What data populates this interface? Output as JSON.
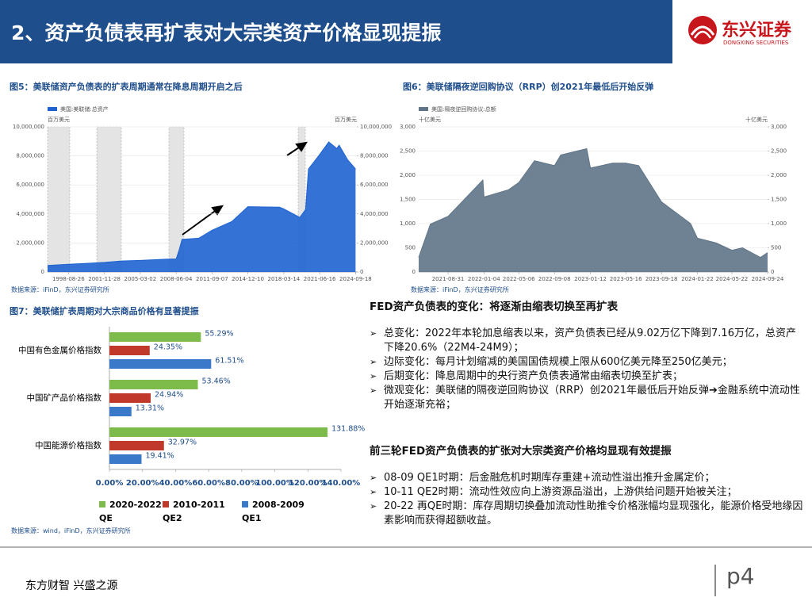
{
  "header": {
    "title": "2、资产负债表再扩表对大宗类资产价格显现提振",
    "logo_name": "东兴证券",
    "logo_english": "DONGXING SECURITIES"
  },
  "chart_data": [
    {
      "type": "area",
      "title": "图5：美联储资产负债表的扩表周期通常在降息周期开启之后",
      "source": "数据来源：iFinD，东兴证券研究所",
      "legend": "美国:美联储:总资产",
      "y_unit": "百万美元",
      "y2_unit": "百万美元",
      "color": "#1f63d0",
      "x": [
        "1996-10-02",
        "1998-08-26",
        "2000-06-28",
        "2001-11-28",
        "2003-06-25",
        "2005-03-02",
        "2007-06-27",
        "2008-06-04",
        "2008-09-10",
        "2008-12-17",
        "2010-06-30",
        "2011-09-07",
        "2013-06-26",
        "2014-12-10",
        "2016-06-29",
        "2017-10-25",
        "2018-03-14",
        "2019-08-28",
        "2020-03-04",
        "2020-06-10",
        "2021-06-16",
        "2022-04-13",
        "2023-01-04",
        "2023-03-22",
        "2024-01-03",
        "2024-09-18"
      ],
      "values": [
        450000,
        530000,
        600000,
        660000,
        760000,
        800000,
        880000,
        900000,
        1500000,
        2250000,
        2330000,
        2880000,
        3480000,
        4500000,
        4480000,
        4470000,
        4350000,
        3760000,
        4300000,
        7100000,
        8100000,
        8960000,
        8510000,
        8740000,
        7720000,
        7100000
      ],
      "xlim": [
        "1996-10-02",
        "2024-10-30"
      ],
      "xticks": [
        "1998-08-26",
        "2001-11-28",
        "2005-03-02",
        "2008-06-04",
        "2011-09-07",
        "2014-12-10",
        "2018-03-14",
        "2021-06-16",
        "2024-09-18"
      ],
      "ylim": [
        0,
        10000000
      ],
      "yticks": [
        0,
        {
          "value": 2000000,
          "label": "2,000,000"
        },
        {
          "value": 4000000,
          "label": "4,000,000"
        },
        {
          "value": 6000000,
          "label": "6,000,000"
        },
        {
          "value": 8000000,
          "label": "8,000,000"
        },
        {
          "value": 10000000,
          "label": "10,000,000"
        }
      ],
      "y2lim": [
        0,
        10000000
      ],
      "y2ticks": [
        0,
        {
          "value": 2000000,
          "label": "2,000,000"
        },
        {
          "value": 4000000,
          "label": "4,000,000"
        },
        {
          "value": 6000000,
          "label": "6,000,000"
        },
        {
          "value": 8000000,
          "label": "8,000,000"
        },
        {
          "value": 10000000,
          "label": "10,000,000"
        }
      ],
      "grid": true
    },
    {
      "type": "area",
      "title": "图6：美联储隔夜逆回购协议（RRP）创2021年最低后开始反弹",
      "source": "数据来源：iFinD，东兴证券研究所",
      "legend": "美国:隔夜逆回购协议:总额",
      "y_unit": "十亿美元",
      "y2_unit": "十亿美元",
      "color": "#5f7487",
      "x": [
        "2021-05-20",
        "2021-06-30",
        "2021-08-31",
        "2021-12-31",
        "2022-01-04",
        "2022-03-31",
        "2022-05-06",
        "2022-06-30",
        "2022-09-08",
        "2022-09-30",
        "2022-12-30",
        "2023-01-12",
        "2023-03-31",
        "2023-05-16",
        "2023-06-30",
        "2023-09-18",
        "2023-12-29",
        "2024-01-22",
        "2024-03-28",
        "2024-05-22",
        "2024-06-28",
        "2024-08-30",
        "2024-09-24"
      ],
      "values": [
        300,
        990,
        1150,
        1900,
        1550,
        1700,
        1850,
        2300,
        2200,
        2420,
        2550,
        2150,
        2250,
        2250,
        2200,
        1450,
        1000,
        700,
        600,
        450,
        500,
        300,
        400
      ],
      "xlim": [
        "2021-05-20",
        "2024-09-24"
      ],
      "xticks": [
        "2021-08-31",
        "2022-01-04",
        "2022-05-06",
        "2022-09-08",
        "2023-01-12",
        "2023-05-16",
        "2023-09-18",
        "2024-01-22",
        "2024-05-22",
        "2024-09-24"
      ],
      "ylim": [
        0,
        3000
      ],
      "yticks": [
        0,
        500,
        {
          "value": 1000,
          "label": "1,000"
        },
        {
          "value": 1500,
          "label": "1,500"
        },
        {
          "value": 2000,
          "label": "2,000"
        },
        {
          "value": 2500,
          "label": "2,500"
        },
        {
          "value": 3000,
          "label": "3,000"
        }
      ],
      "y2lim": [
        0,
        3000
      ],
      "y2ticks": [
        0,
        500,
        {
          "value": 1000,
          "label": "1,000"
        },
        {
          "value": 1500,
          "label": "1,500"
        },
        {
          "value": 2000,
          "label": "2,000"
        },
        {
          "value": 2500,
          "label": "2,500"
        },
        {
          "value": 3000,
          "label": "3,000"
        }
      ],
      "grid": true
    },
    {
      "type": "hbar",
      "title": "图7：美联储扩表周期对大宗商品价格有显著提振",
      "source": "数据来源：wind，iFinD，东兴证券研究所",
      "categories": [
        "中国有色金属价格指数",
        "中国矿产品价格指数",
        "中国能源价格指数"
      ],
      "series": [
        {
          "name": "2020-2022 QE",
          "color": "#7dbb4a",
          "values": [
            55.29,
            53.46,
            131.88
          ],
          "value_labels": [
            "55.29%",
            "53.46%",
            "131.88%"
          ]
        },
        {
          "name": "2010-2011 QE2",
          "color": "#c0392b",
          "values": [
            24.35,
            24.94,
            32.97
          ],
          "value_labels": [
            "24.35%",
            "24.94%",
            "32.97%"
          ]
        },
        {
          "name": "2008-2009 QE1",
          "color": "#3a78c9",
          "values": [
            61.51,
            13.31,
            19.41
          ],
          "value_labels": [
            "61.51%",
            "13.31%",
            "19.41%"
          ]
        }
      ],
      "xlim": [
        0,
        140
      ],
      "xticks": [
        {
          "value": 0,
          "label": "0.00%"
        },
        {
          "value": 20,
          "label": "20.00%"
        },
        {
          "value": 40,
          "label": "40.00%"
        },
        {
          "value": 60,
          "label": "60.00%"
        },
        {
          "value": 80,
          "label": "80.00%"
        },
        {
          "value": 100,
          "label": "100.00%"
        },
        {
          "value": 120,
          "label": "120.00%"
        },
        {
          "value": 140,
          "label": "140.00%"
        }
      ]
    }
  ],
  "text": {
    "sections": [
      {
        "heading": "FED资产负债表的变化：将逐渐由缩表切换至再扩表",
        "bullets": [
          "总变化：2022年本轮加息缩表以来，资产负债表已经从9.02万亿下降到7.16万亿，总资产下降20.6%（22M4-24M9）；",
          "边际变化：每月计划缩减的美国国债规模上限从600亿美元降至250亿美元；",
          "后期变化：降息周期中的央行资产负债表通常由缩表切换至扩表；",
          "微观变化：美联储的隔夜逆回购协议（RRP）创2021年最低后开始反弹➔金融系统中流动性开始逐渐充裕；"
        ]
      },
      {
        "heading": "前三轮FED资产负债表的扩张对大宗类资产价格均显现有效提振",
        "bullets": [
          "08-09 QE1时期：后金融危机时期库存重建+流动性溢出推升金属定价；",
          "10-11 QE2时期：流动性效应向上游资源品溢出，上游供给问题开始被关注；",
          "20-22 再QE时期：库存周期切换叠加流动性助推令价格涨幅均显现强化，能源价格受地缘因素影响而获得超额收益。"
        ]
      }
    ]
  },
  "footer": {
    "slogan": "东方财智  兴盛之源",
    "page": "p4"
  }
}
